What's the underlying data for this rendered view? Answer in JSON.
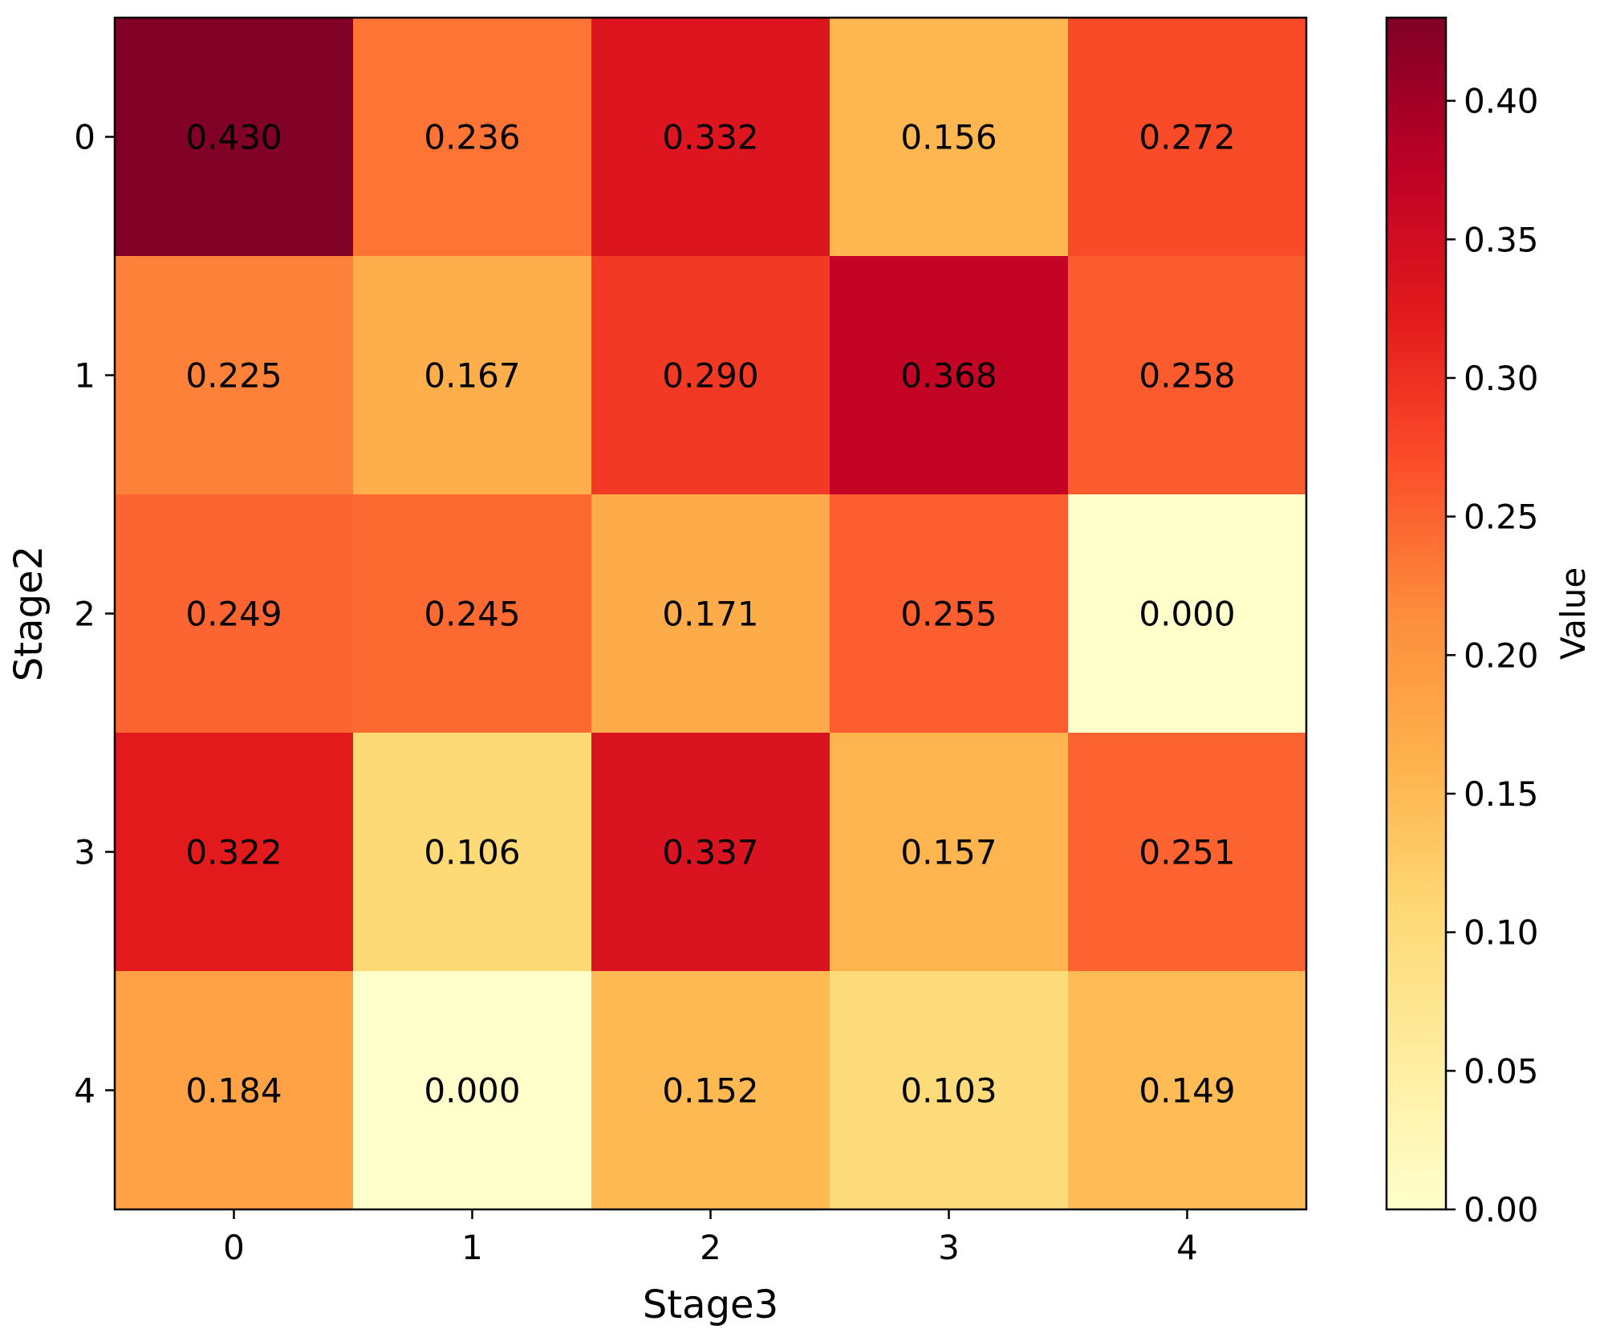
{
  "chart_data": {
    "type": "heatmap",
    "x_categories": [
      "0",
      "1",
      "2",
      "3",
      "4"
    ],
    "y_categories": [
      "0",
      "1",
      "2",
      "3",
      "4"
    ],
    "values": [
      [
        0.43,
        0.236,
        0.332,
        0.156,
        0.272
      ],
      [
        0.225,
        0.167,
        0.29,
        0.368,
        0.258
      ],
      [
        0.249,
        0.245,
        0.171,
        0.255,
        0.0
      ],
      [
        0.322,
        0.106,
        0.337,
        0.157,
        0.251
      ],
      [
        0.184,
        0.0,
        0.152,
        0.103,
        0.149
      ]
    ],
    "cell_labels": [
      [
        "0.430",
        "0.236",
        "0.332",
        "0.156",
        "0.272"
      ],
      [
        "0.225",
        "0.167",
        "0.290",
        "0.368",
        "0.258"
      ],
      [
        "0.249",
        "0.245",
        "0.171",
        "0.255",
        "0.000"
      ],
      [
        "0.322",
        "0.106",
        "0.337",
        "0.157",
        "0.251"
      ],
      [
        "0.184",
        "0.000",
        "0.152",
        "0.103",
        "0.149"
      ]
    ],
    "xlabel": "Stage3",
    "ylabel": "Stage2",
    "colorbar": {
      "label": "Value",
      "range": [
        0.0,
        0.43
      ],
      "ticks": [
        0.0,
        0.05,
        0.1,
        0.15,
        0.2,
        0.25,
        0.3,
        0.35,
        0.4
      ],
      "tick_labels": [
        "0.00",
        "0.05",
        "0.10",
        "0.15",
        "0.20",
        "0.25",
        "0.30",
        "0.35",
        "0.40"
      ],
      "colormap": "YlOrRd",
      "colormap_stops": [
        "#ffffcc",
        "#ffeda0",
        "#fed976",
        "#feb24c",
        "#fd8d3c",
        "#fc4e2a",
        "#e31a1c",
        "#bd0026",
        "#800026"
      ]
    },
    "grid": false,
    "text_color": "#000000"
  }
}
